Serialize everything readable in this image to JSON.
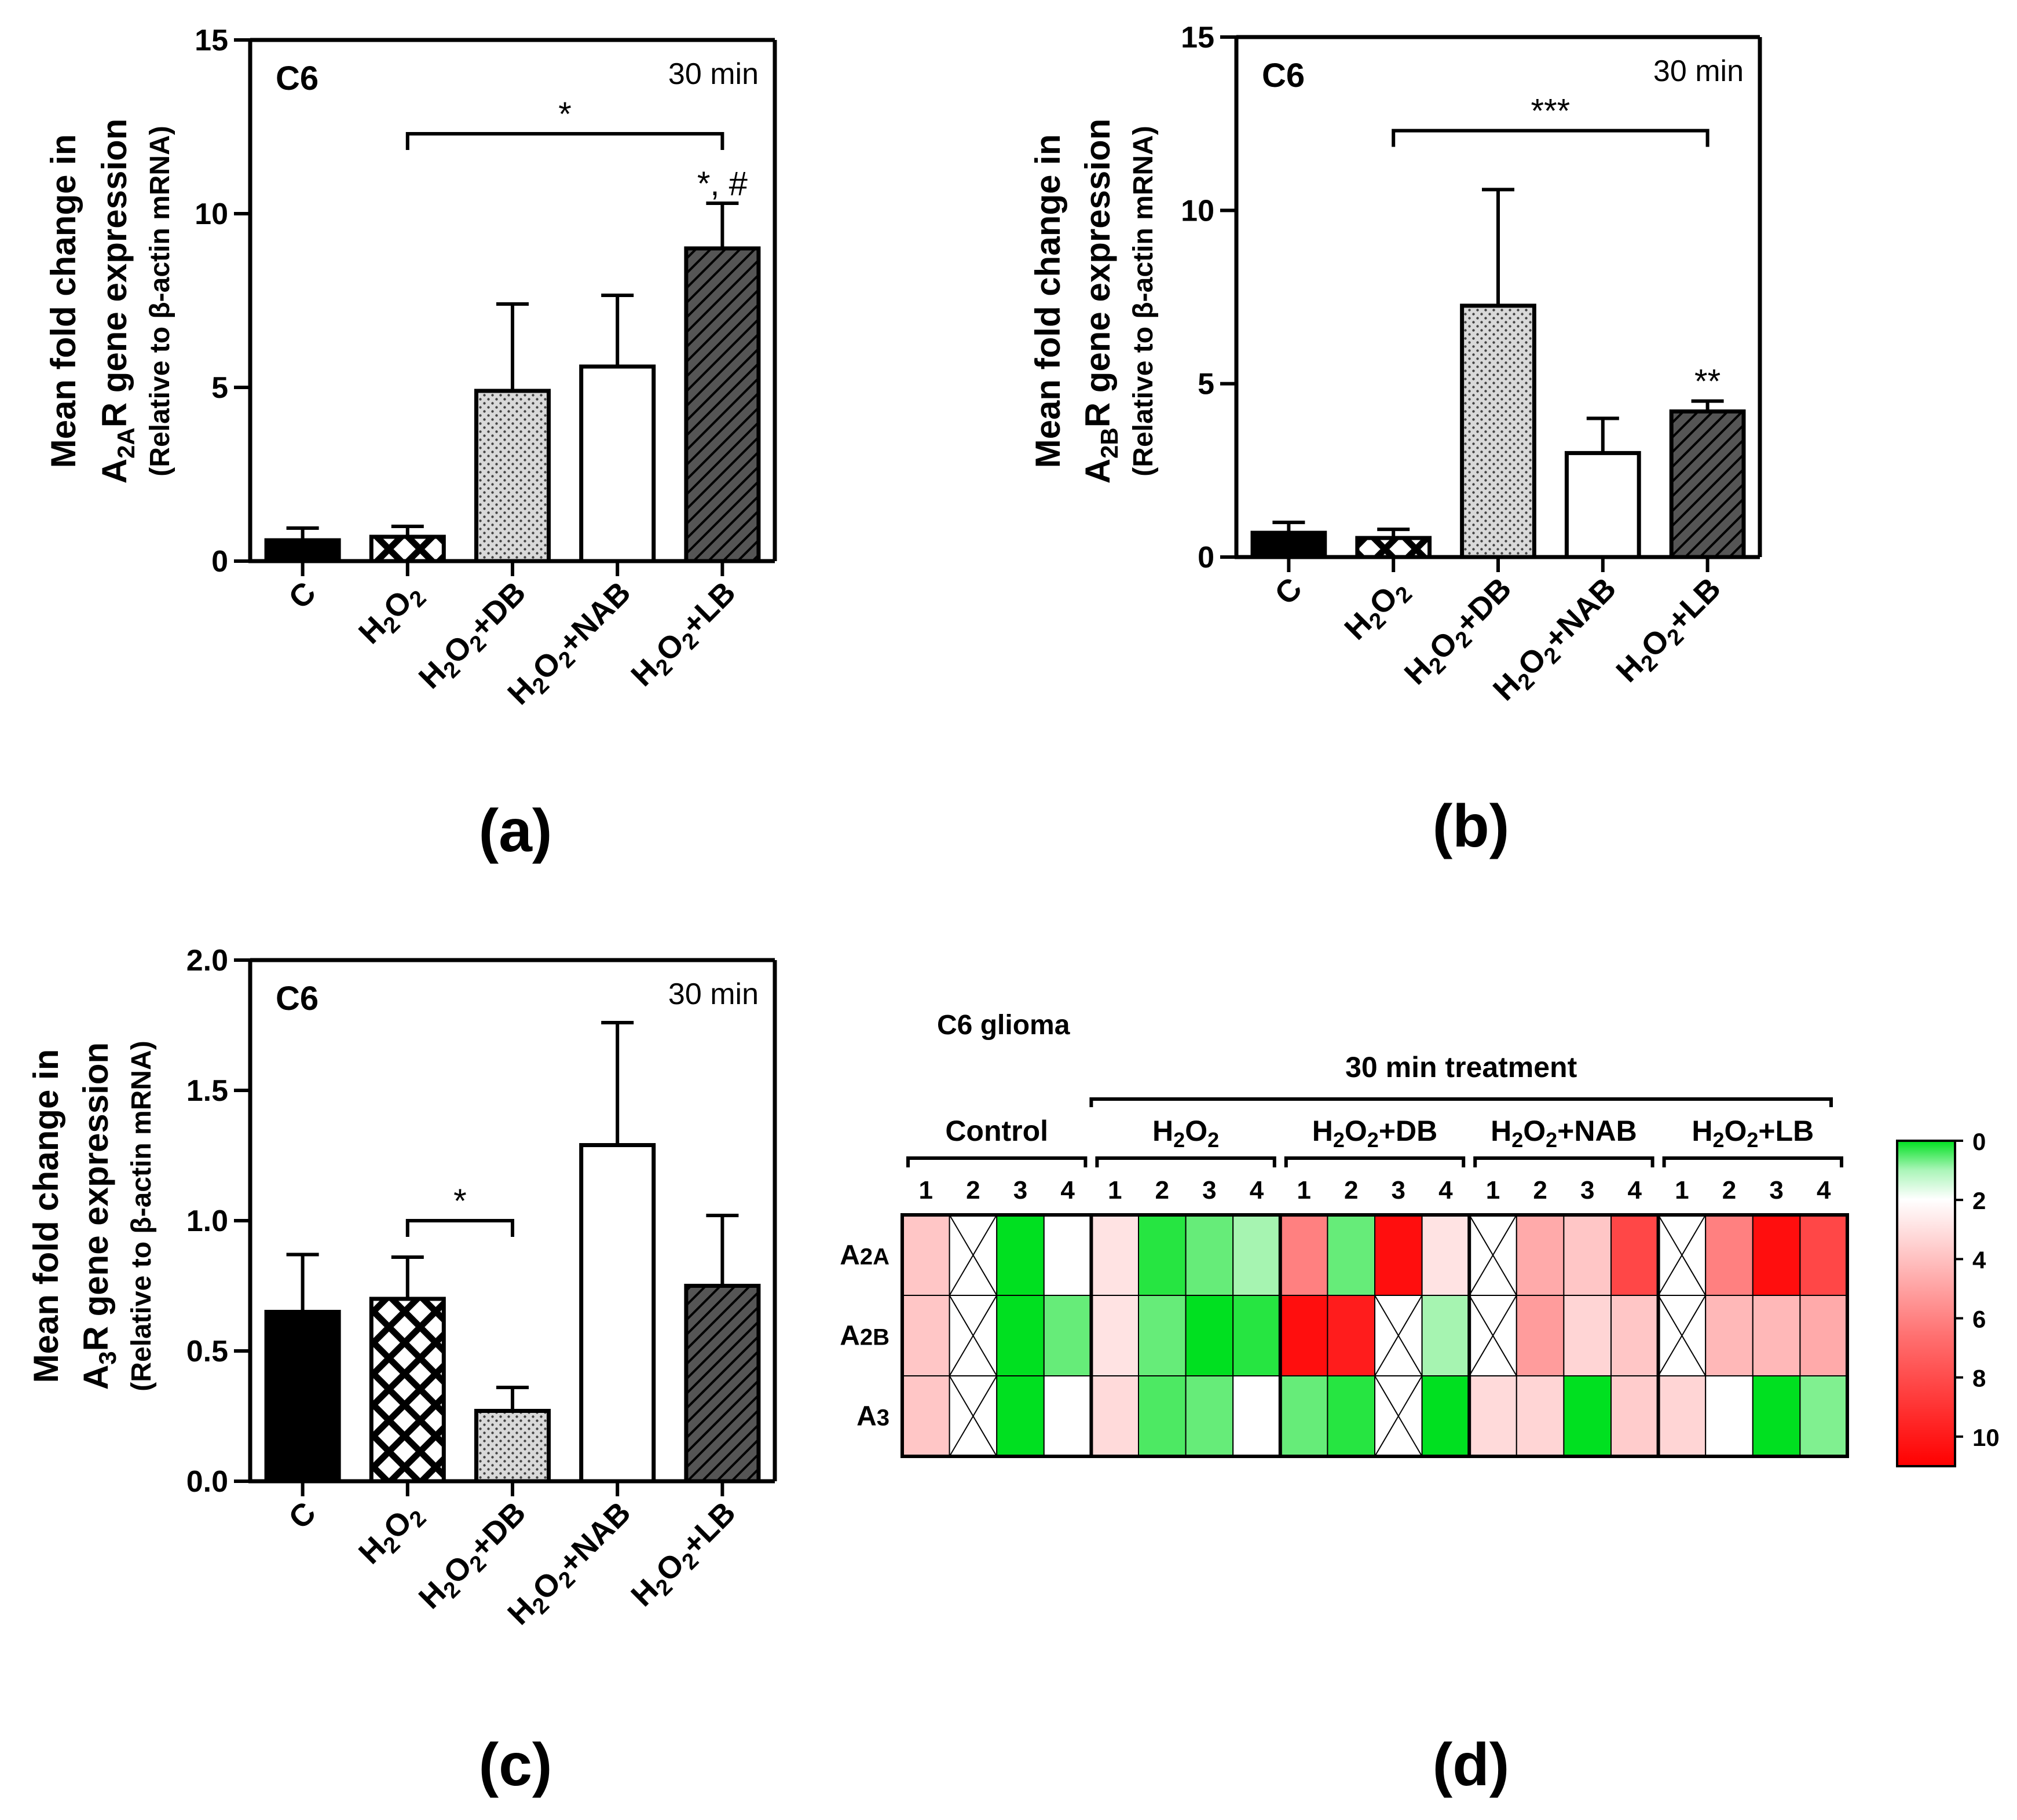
{
  "patterns": {
    "C": "solid-black",
    "H2O2": "crosshatch",
    "H2O2+DB": "dots",
    "H2O2+NAB": "white",
    "H2O2+LB": "diagonal-hatch"
  },
  "colors": {
    "axis": "#000000",
    "bar_dark": "#000000",
    "hatch_fill": "#555555",
    "dot_fill": "#d9d9d9",
    "heat_low": "#00e020",
    "heat_mid": "#ffffff",
    "heat_high": "#ff0000"
  },
  "chart_data": [
    {
      "id": "a",
      "type": "bar",
      "panel_label": "(a)",
      "cell_label": "C6",
      "time_label": "30 min",
      "ylabel_line1": "Mean fold change in",
      "ylabel_line2_main": "A",
      "ylabel_line2_sub": "2A",
      "ylabel_line2_rest": "R gene expression",
      "ylabel_line3": "(Relative to β-actin mRNA)",
      "ylim": [
        0,
        15
      ],
      "yticks": [
        0,
        5,
        10,
        15
      ],
      "ytick_labels": [
        "0",
        "5",
        "10",
        "15"
      ],
      "categories": [
        {
          "main": "C",
          "sub1": "",
          "mid": "",
          "sub2": "",
          "rest": ""
        },
        {
          "main": "H",
          "sub1": "2",
          "mid": "O",
          "sub2": "2",
          "rest": ""
        },
        {
          "main": "H",
          "sub1": "2",
          "mid": "O",
          "sub2": "2",
          "rest": "+DB"
        },
        {
          "main": "H",
          "sub1": "2",
          "mid": "O",
          "sub2": "2",
          "rest": "+NAB"
        },
        {
          "main": "H",
          "sub1": "2",
          "mid": "O",
          "sub2": "2",
          "rest": "+LB"
        }
      ],
      "values": [
        0.6,
        0.7,
        4.9,
        5.6,
        9.0
      ],
      "errors": [
        0.35,
        0.3,
        2.5,
        2.05,
        1.3
      ],
      "patterns": [
        "solid",
        "crosshatch",
        "dots",
        "white",
        "hatch"
      ],
      "brackets": [
        {
          "from": 1,
          "to": 4,
          "y": 12.3,
          "label": "*"
        }
      ],
      "bar_annotations": [
        {
          "index": 4,
          "label": "*, #"
        }
      ]
    },
    {
      "id": "b",
      "type": "bar",
      "panel_label": "(b)",
      "cell_label": "C6",
      "time_label": "30 min",
      "ylabel_line1": "Mean fold change in",
      "ylabel_line2_main": "A",
      "ylabel_line2_sub": "2B",
      "ylabel_line2_rest": "R gene expression",
      "ylabel_line3": "(Relative to β-actin mRNA)",
      "ylim": [
        0,
        15
      ],
      "yticks": [
        0,
        5,
        10,
        15
      ],
      "ytick_labels": [
        "0",
        "5",
        "10",
        "15"
      ],
      "categories": [
        {
          "main": "C",
          "sub1": "",
          "mid": "",
          "sub2": "",
          "rest": ""
        },
        {
          "main": "H",
          "sub1": "2",
          "mid": "O",
          "sub2": "2",
          "rest": ""
        },
        {
          "main": "H",
          "sub1": "2",
          "mid": "O",
          "sub2": "2",
          "rest": "+DB"
        },
        {
          "main": "H",
          "sub1": "2",
          "mid": "O",
          "sub2": "2",
          "rest": "+NAB"
        },
        {
          "main": "H",
          "sub1": "2",
          "mid": "O",
          "sub2": "2",
          "rest": "+LB"
        }
      ],
      "values": [
        0.7,
        0.55,
        7.25,
        3.0,
        4.2
      ],
      "errors": [
        0.3,
        0.25,
        3.35,
        1.0,
        0.3
      ],
      "patterns": [
        "solid",
        "crosshatch",
        "dots",
        "white",
        "hatch"
      ],
      "brackets": [
        {
          "from": 1,
          "to": 4,
          "y": 12.3,
          "label": "***"
        }
      ],
      "bar_annotations": [
        {
          "index": 4,
          "label": "**"
        }
      ]
    },
    {
      "id": "c",
      "type": "bar",
      "panel_label": "(c)",
      "cell_label": "C6",
      "time_label": "30 min",
      "ylabel_line1": "Mean fold change in",
      "ylabel_line2_main": "A",
      "ylabel_line2_sub": "3",
      "ylabel_line2_rest": "R gene expression",
      "ylabel_line3": "(Relative to β-actin mRNA)",
      "ylim": [
        0,
        2.0
      ],
      "yticks": [
        0,
        0.5,
        1.0,
        1.5,
        2.0
      ],
      "ytick_labels": [
        "0.0",
        "0.5",
        "1.0",
        "1.5",
        "2.0"
      ],
      "categories": [
        {
          "main": "C",
          "sub1": "",
          "mid": "",
          "sub2": "",
          "rest": ""
        },
        {
          "main": "H",
          "sub1": "2",
          "mid": "O",
          "sub2": "2",
          "rest": ""
        },
        {
          "main": "H",
          "sub1": "2",
          "mid": "O",
          "sub2": "2",
          "rest": "+DB"
        },
        {
          "main": "H",
          "sub1": "2",
          "mid": "O",
          "sub2": "2",
          "rest": "+NAB"
        },
        {
          "main": "H",
          "sub1": "2",
          "mid": "O",
          "sub2": "2",
          "rest": "+LB"
        }
      ],
      "values": [
        0.65,
        0.7,
        0.27,
        1.29,
        0.75
      ],
      "errors": [
        0.22,
        0.16,
        0.09,
        0.47,
        0.27
      ],
      "patterns": [
        "solid",
        "crosshatch",
        "dots",
        "white",
        "hatch"
      ],
      "brackets": [
        {
          "from": 1,
          "to": 2,
          "y": 1.0,
          "label": "*"
        }
      ],
      "bar_annotations": []
    },
    {
      "id": "d",
      "type": "heatmap",
      "panel_label": "(d)",
      "title": "C6 glioma",
      "super_group_label": "30 min treatment",
      "groups": [
        {
          "main": "Control",
          "sub1": "",
          "mid": "",
          "sub2": "",
          "rest": ""
        },
        {
          "main": "H",
          "sub1": "2",
          "mid": "O",
          "sub2": "2",
          "rest": ""
        },
        {
          "main": "H",
          "sub1": "2",
          "mid": "O",
          "sub2": "2",
          "rest": "+DB"
        },
        {
          "main": "H",
          "sub1": "2",
          "mid": "O",
          "sub2": "2",
          "rest": "+NAB"
        },
        {
          "main": "H",
          "sub1": "2",
          "mid": "O",
          "sub2": "2",
          "rest": "+LB"
        }
      ],
      "replicates": [
        "1",
        "2",
        "3",
        "4"
      ],
      "rows": [
        {
          "main": "A",
          "sub": "2A"
        },
        {
          "main": "A",
          "sub": "2B"
        },
        {
          "main": "A",
          "sub": "3"
        }
      ],
      "values": [
        [
          4,
          null,
          0,
          2,
          3,
          0.3,
          0.8,
          1.3,
          6.5,
          0.8,
          10.5,
          3,
          null,
          5,
          4,
          8.5,
          null,
          6.5,
          10.5,
          8.5
        ],
        [
          4,
          null,
          0,
          0.8,
          3,
          0.8,
          0,
          0.3,
          10.5,
          10,
          null,
          1.3,
          null,
          5.5,
          3.5,
          4,
          null,
          4.5,
          4.5,
          5
        ],
        [
          4,
          null,
          0,
          2,
          3.3,
          0.6,
          0.8,
          2,
          0.8,
          0.3,
          null,
          0,
          3.3,
          3.5,
          0,
          3.8,
          3.5,
          2,
          0,
          1
        ]
      ],
      "scale_min": 0,
      "scale_max": 11,
      "legend_ticks": [
        "0",
        "2",
        "4",
        "6",
        "8",
        "10"
      ],
      "legend_values": [
        0,
        2,
        4,
        6,
        8,
        10
      ]
    }
  ]
}
